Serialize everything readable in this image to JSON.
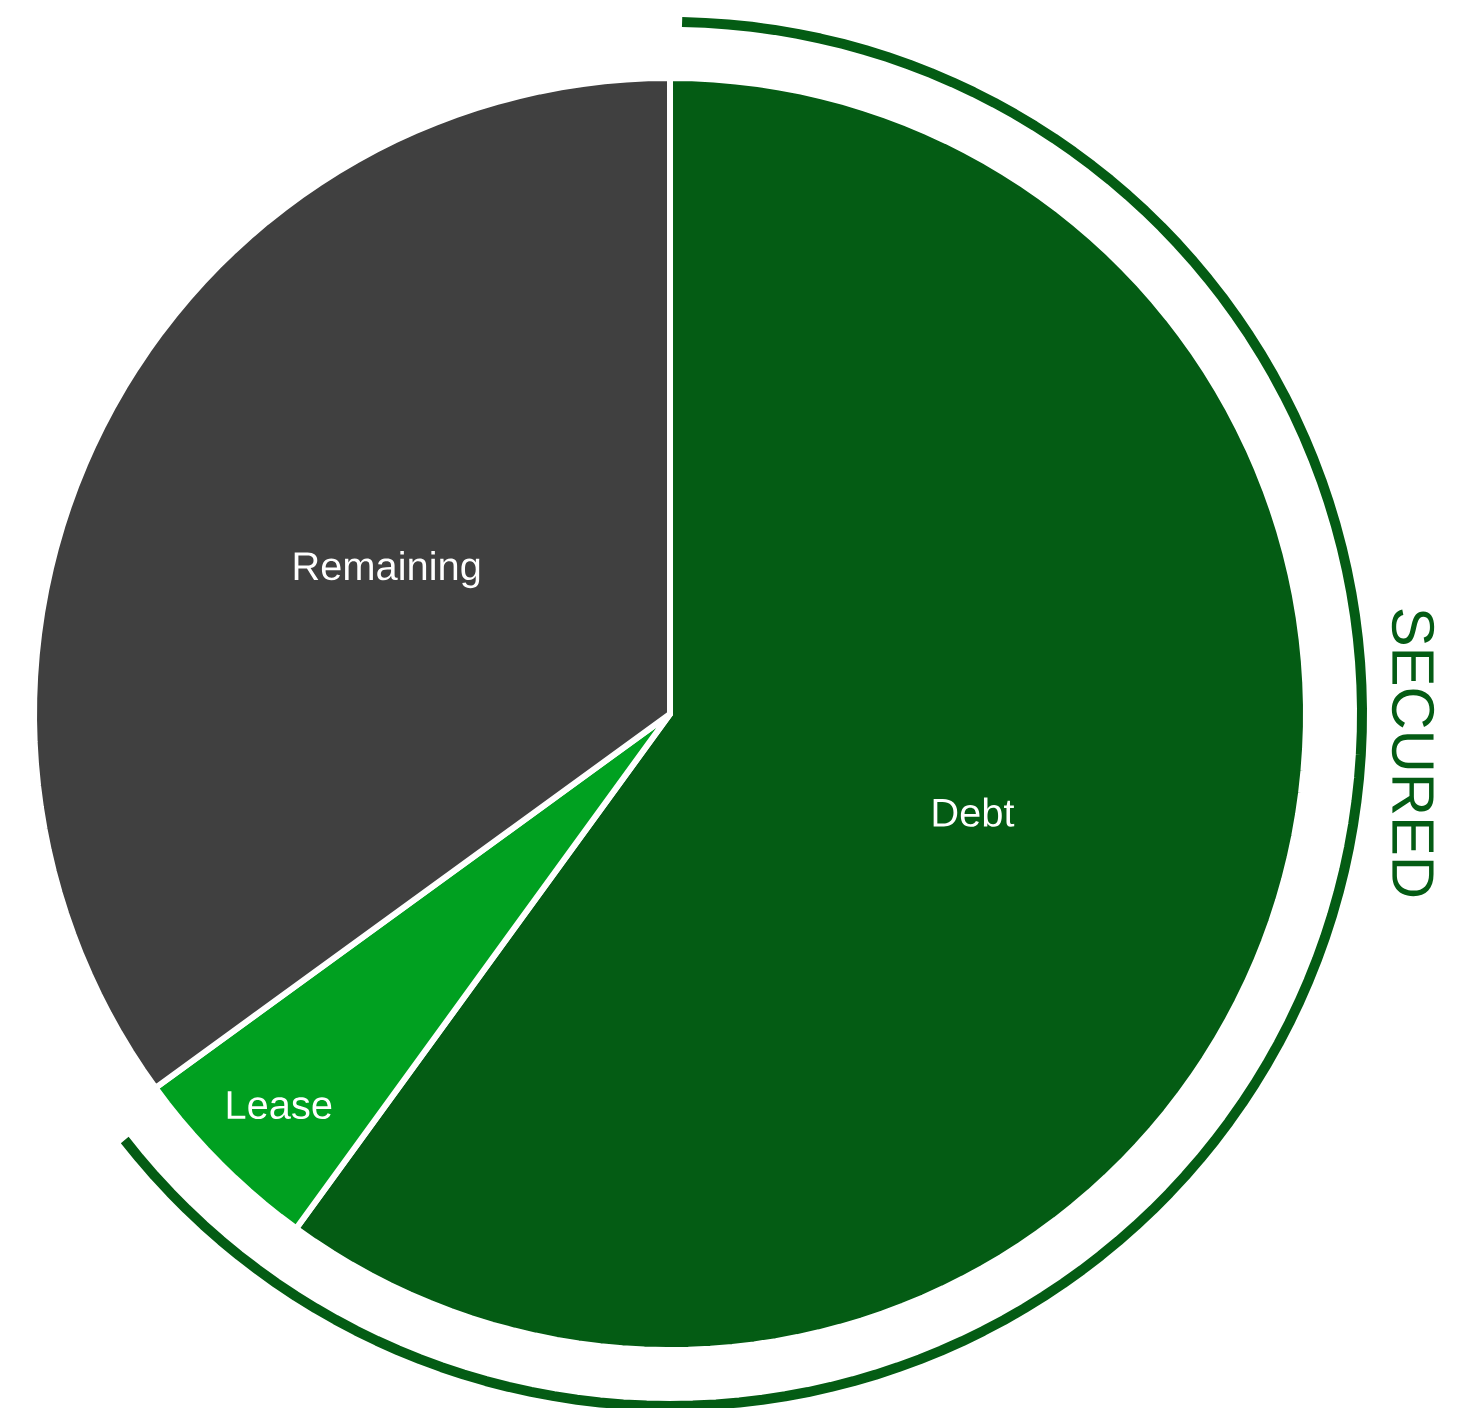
{
  "chart_data": {
    "type": "pie",
    "categories": [
      "Debt",
      "Lease",
      "Remaining"
    ],
    "values": [
      60,
      5,
      35
    ],
    "colors": [
      "#045c14",
      "#00a020",
      "#404040"
    ],
    "annotations": [
      "SECURED"
    ]
  }
}
